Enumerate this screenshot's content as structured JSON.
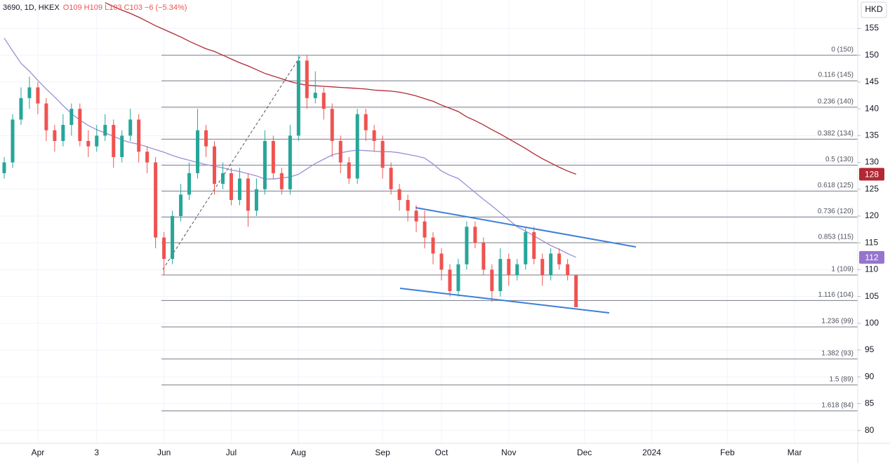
{
  "chart_data": {
    "type": "candlestick",
    "header": {
      "symbol": "3690, 1D, HKEX",
      "quote": "O109 H109 L103 C103 −6 (−5.34%)"
    },
    "currency": "HKD",
    "up_color": "#26a69a",
    "down_color": "#ef5350",
    "grid": true,
    "ylim": [
      77.6,
      160.3
    ],
    "yticks": [
      80,
      85,
      90,
      95,
      100,
      105,
      110,
      115,
      120,
      125,
      130,
      135,
      140,
      145,
      150,
      155
    ],
    "categories": [
      null,
      null,
      null,
      null,
      "Apr",
      null,
      null,
      null,
      null,
      null,
      null,
      "3",
      null,
      null,
      null,
      null,
      null,
      null,
      null,
      "Jun",
      null,
      null,
      null,
      null,
      null,
      null,
      null,
      "Jul",
      null,
      null,
      null,
      null,
      null,
      null,
      null,
      "Aug",
      null,
      null,
      null,
      null,
      null,
      null,
      null,
      null,
      null,
      "Sep",
      null,
      null,
      null,
      null,
      null,
      null,
      "Oct",
      null,
      null,
      null,
      null,
      null,
      null,
      null,
      "Nov",
      null,
      null,
      null,
      null,
      null,
      null,
      null,
      null,
      "Dec",
      null,
      null,
      null,
      null,
      null,
      null,
      null,
      "2024",
      null,
      null,
      null,
      null,
      null,
      null,
      null,
      null,
      "Feb",
      null,
      null,
      null,
      null,
      null,
      null,
      null,
      "Mar",
      null,
      null,
      null,
      null,
      null,
      null,
      null
    ],
    "ohlc": [
      [
        128,
        131,
        127,
        130
      ],
      [
        130,
        139,
        129,
        138
      ],
      [
        138,
        144,
        137,
        142
      ],
      [
        142,
        146,
        140,
        144
      ],
      [
        144,
        145,
        139,
        141
      ],
      [
        141,
        142,
        134,
        136
      ],
      [
        136,
        137,
        132,
        134
      ],
      [
        134,
        139,
        133,
        137
      ],
      [
        137,
        141,
        135,
        140
      ],
      [
        140,
        141,
        133,
        134
      ],
      [
        134,
        136,
        131,
        133
      ],
      [
        133,
        137,
        132,
        135
      ],
      [
        135,
        139,
        134,
        137
      ],
      [
        137,
        138,
        129,
        131
      ],
      [
        131,
        136,
        130,
        135
      ],
      [
        135,
        140,
        134,
        138
      ],
      [
        138,
        139,
        130,
        132
      ],
      [
        132,
        133,
        128,
        130
      ],
      [
        130,
        131,
        114,
        116
      ],
      [
        116,
        117,
        109,
        112
      ],
      [
        112,
        121,
        111,
        120
      ],
      [
        120,
        126,
        119,
        124
      ],
      [
        124,
        130,
        123,
        128
      ],
      [
        128,
        140,
        127,
        136
      ],
      [
        136,
        137,
        131,
        133
      ],
      [
        133,
        134,
        124,
        126
      ],
      [
        126,
        130,
        125,
        128
      ],
      [
        128,
        129,
        122,
        123
      ],
      [
        123,
        129,
        122,
        127
      ],
      [
        127,
        128,
        118,
        121
      ],
      [
        121,
        127,
        120,
        125
      ],
      [
        125,
        136,
        124,
        134
      ],
      [
        134,
        135,
        127,
        128
      ],
      [
        128,
        129,
        124,
        125
      ],
      [
        125,
        137,
        124,
        135
      ],
      [
        135,
        150,
        134,
        149
      ],
      [
        149,
        150,
        140,
        142
      ],
      [
        142,
        147,
        141,
        143
      ],
      [
        143,
        144,
        138,
        140
      ],
      [
        140,
        141,
        131,
        134
      ],
      [
        134,
        135,
        128,
        130
      ],
      [
        130,
        131,
        126,
        127
      ],
      [
        127,
        140,
        126,
        139
      ],
      [
        139,
        140,
        134,
        136
      ],
      [
        136,
        137,
        132,
        134
      ],
      [
        134,
        135,
        127,
        129
      ],
      [
        129,
        130,
        124,
        125
      ],
      [
        125,
        126,
        121,
        123
      ],
      [
        123,
        124,
        119,
        121
      ],
      [
        121,
        122,
        117,
        119
      ],
      [
        119,
        121,
        114,
        116
      ],
      [
        116,
        117,
        111,
        113
      ],
      [
        113,
        114,
        108,
        110
      ],
      [
        110,
        111,
        105,
        106
      ],
      [
        106,
        112,
        105,
        111
      ],
      [
        111,
        119,
        110,
        118
      ],
      [
        118,
        119,
        114,
        115
      ],
      [
        115,
        116,
        109,
        110
      ],
      [
        110,
        111,
        104,
        106
      ],
      [
        106,
        114,
        105,
        112
      ],
      [
        112,
        113,
        107,
        109
      ],
      [
        109,
        112,
        108,
        111
      ],
      [
        111,
        118,
        110,
        117
      ],
      [
        117,
        118,
        111,
        112
      ],
      [
        112,
        113,
        107,
        109
      ],
      [
        109,
        114,
        108,
        113
      ],
      [
        113,
        114,
        110,
        111
      ],
      [
        111,
        112,
        108,
        109
      ],
      [
        109,
        109,
        103,
        103
      ],
      null,
      null,
      null,
      null,
      null,
      null,
      null,
      null,
      null,
      null,
      null,
      null,
      null,
      null,
      null,
      null,
      null,
      null,
      null,
      null,
      null,
      null,
      null,
      null,
      null,
      null,
      null,
      null,
      null,
      null,
      null,
      null,
      null
    ],
    "series": [
      {
        "color": "#9c8fd6",
        "values": [
          153.2,
          150.8,
          148.5,
          147,
          145.3,
          143.7,
          142.2,
          140.6,
          139.1,
          137.9,
          136.9,
          136.1,
          135.5,
          134.9,
          134.2,
          133.7,
          133.4,
          132.9,
          132.4,
          131.9,
          131.3,
          130.8,
          130.4,
          130,
          129.6,
          129.3,
          129,
          128.6,
          128.3,
          127.9,
          127.5,
          126.9,
          126.9,
          127.1,
          127.3,
          127.8,
          128.8,
          129.8,
          130.6,
          131.4,
          131.8,
          132.1,
          132.3,
          132.2,
          132.1,
          132,
          132,
          131.8,
          131.5,
          131.2,
          130.8,
          129.7,
          128.4,
          127.6,
          127,
          125.7,
          124.4,
          123.1,
          121.9,
          120.6,
          119.3,
          118,
          117.2,
          116.3,
          115.4,
          114.5,
          113.8,
          113,
          112.3,
          null,
          null,
          null,
          null,
          null,
          null,
          null,
          null,
          null,
          null,
          null,
          null,
          null,
          null,
          null,
          null,
          null,
          null,
          null,
          null,
          null,
          null,
          null,
          null,
          null,
          null,
          null,
          null,
          null,
          null,
          null,
          null,
          null
        ]
      },
      {
        "color": "#b22833",
        "values": [
          null,
          null,
          null,
          null,
          null,
          null,
          null,
          null,
          null,
          null,
          null,
          null,
          159.8,
          159.1,
          158.4,
          157.8,
          157.1,
          156.3,
          155.5,
          154.8,
          154.1,
          153.4,
          152.6,
          151.9,
          151.2,
          150.7,
          150,
          149.3,
          148.6,
          148,
          147.3,
          146.6,
          146.1,
          145.6,
          145.1,
          144.7,
          144.4,
          144.3,
          144.2,
          144.1,
          144,
          143.9,
          143.8,
          143.7,
          143.5,
          143.4,
          143.3,
          143.1,
          142.8,
          142.4,
          141.9,
          141.4,
          140.7,
          140.1,
          139.5,
          138.5,
          137.8,
          137,
          136.1,
          135.3,
          134.4,
          133.5,
          132.6,
          131.6,
          130.7,
          129.9,
          129.1,
          128.4,
          127.8,
          null,
          null,
          null,
          null,
          null,
          null,
          null,
          null,
          null,
          null,
          null,
          null,
          null,
          null,
          null,
          null,
          null,
          null,
          null,
          null,
          null,
          null,
          null,
          null,
          null,
          null,
          null,
          null,
          null,
          null,
          null,
          null,
          null
        ]
      }
    ],
    "price_badges": [
      {
        "value": 127.8,
        "label": "128",
        "color": "#b22833"
      },
      {
        "value": 112.3,
        "label": "112",
        "color": "#9575cd"
      }
    ],
    "fib_levels": [
      {
        "value": 150,
        "label": "0 (150)"
      },
      {
        "value": 145.24,
        "label": "0.116 (145)"
      },
      {
        "value": 140.32,
        "label": "0.236 (140)"
      },
      {
        "value": 134.34,
        "label": "0.382 (134)"
      },
      {
        "value": 129.5,
        "label": "0.5 (130)"
      },
      {
        "value": 124.66,
        "label": "0.618 (125)"
      },
      {
        "value": 119.82,
        "label": "0.736 (120)"
      },
      {
        "value": 115.03,
        "label": "0.853 (115)"
      },
      {
        "value": 109,
        "label": "1 (109)"
      },
      {
        "value": 104.24,
        "label": "1.116 (104)"
      },
      {
        "value": 99.32,
        "label": "1.236 (99)"
      },
      {
        "value": 93.34,
        "label": "1.382 (93)"
      },
      {
        "value": 88.5,
        "label": "1.5 (89)"
      },
      {
        "value": 83.66,
        "label": "1.618 (84)"
      }
    ]
  }
}
